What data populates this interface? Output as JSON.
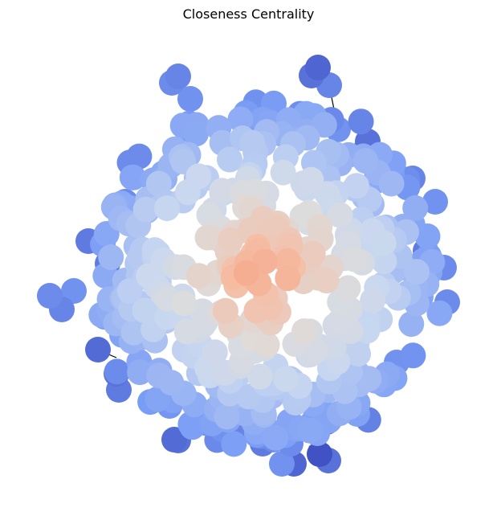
{
  "figure": {
    "title": "Closeness Centrality"
  },
  "colors": {
    "background": "#ffffff",
    "edge": "#000000",
    "colormap": "coolwarm",
    "low": "#3b4cc0",
    "mid": "#dddcdc",
    "high": "#f7ad8f"
  }
}
